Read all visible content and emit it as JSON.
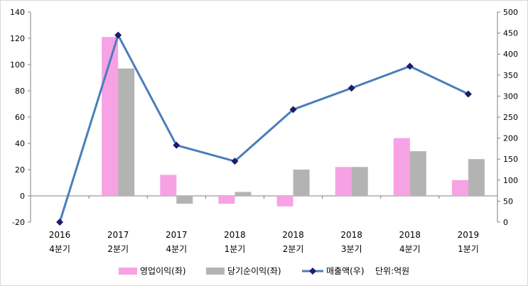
{
  "chart_data": {
    "type": "bar",
    "categories": [
      [
        "2016",
        "4분기"
      ],
      [
        "2017",
        "2분기"
      ],
      [
        "2017",
        "4분기"
      ],
      [
        "2018",
        "1분기"
      ],
      [
        "2018",
        "2분기"
      ],
      [
        "2018",
        "3분기"
      ],
      [
        "2018",
        "4분기"
      ],
      [
        "2019",
        "1분기"
      ]
    ],
    "series": [
      {
        "name": "영업이익(좌)",
        "type": "bar",
        "axis": "left",
        "color": "#f6a2e4",
        "values": [
          0,
          121,
          16,
          -6,
          -8,
          22,
          44,
          12
        ]
      },
      {
        "name": "당기순이익(좌)",
        "type": "bar",
        "axis": "left",
        "color": "#b3b3b3",
        "values": [
          0,
          97,
          -6,
          3,
          20,
          22,
          34,
          28
        ]
      },
      {
        "name": "매출액(우)",
        "type": "line",
        "axis": "right",
        "color": "#4a7ebb",
        "marker_color": "#1f1a6e",
        "values": [
          0,
          445,
          183,
          145,
          268,
          319,
          371,
          305
        ]
      }
    ],
    "y_left": {
      "min": -20,
      "max": 140,
      "step": 20
    },
    "y_right": {
      "min": 0,
      "max": 500,
      "step": 50
    },
    "legend": {
      "position": "bottom",
      "unit_note": "단위:억원"
    },
    "grid": false
  }
}
